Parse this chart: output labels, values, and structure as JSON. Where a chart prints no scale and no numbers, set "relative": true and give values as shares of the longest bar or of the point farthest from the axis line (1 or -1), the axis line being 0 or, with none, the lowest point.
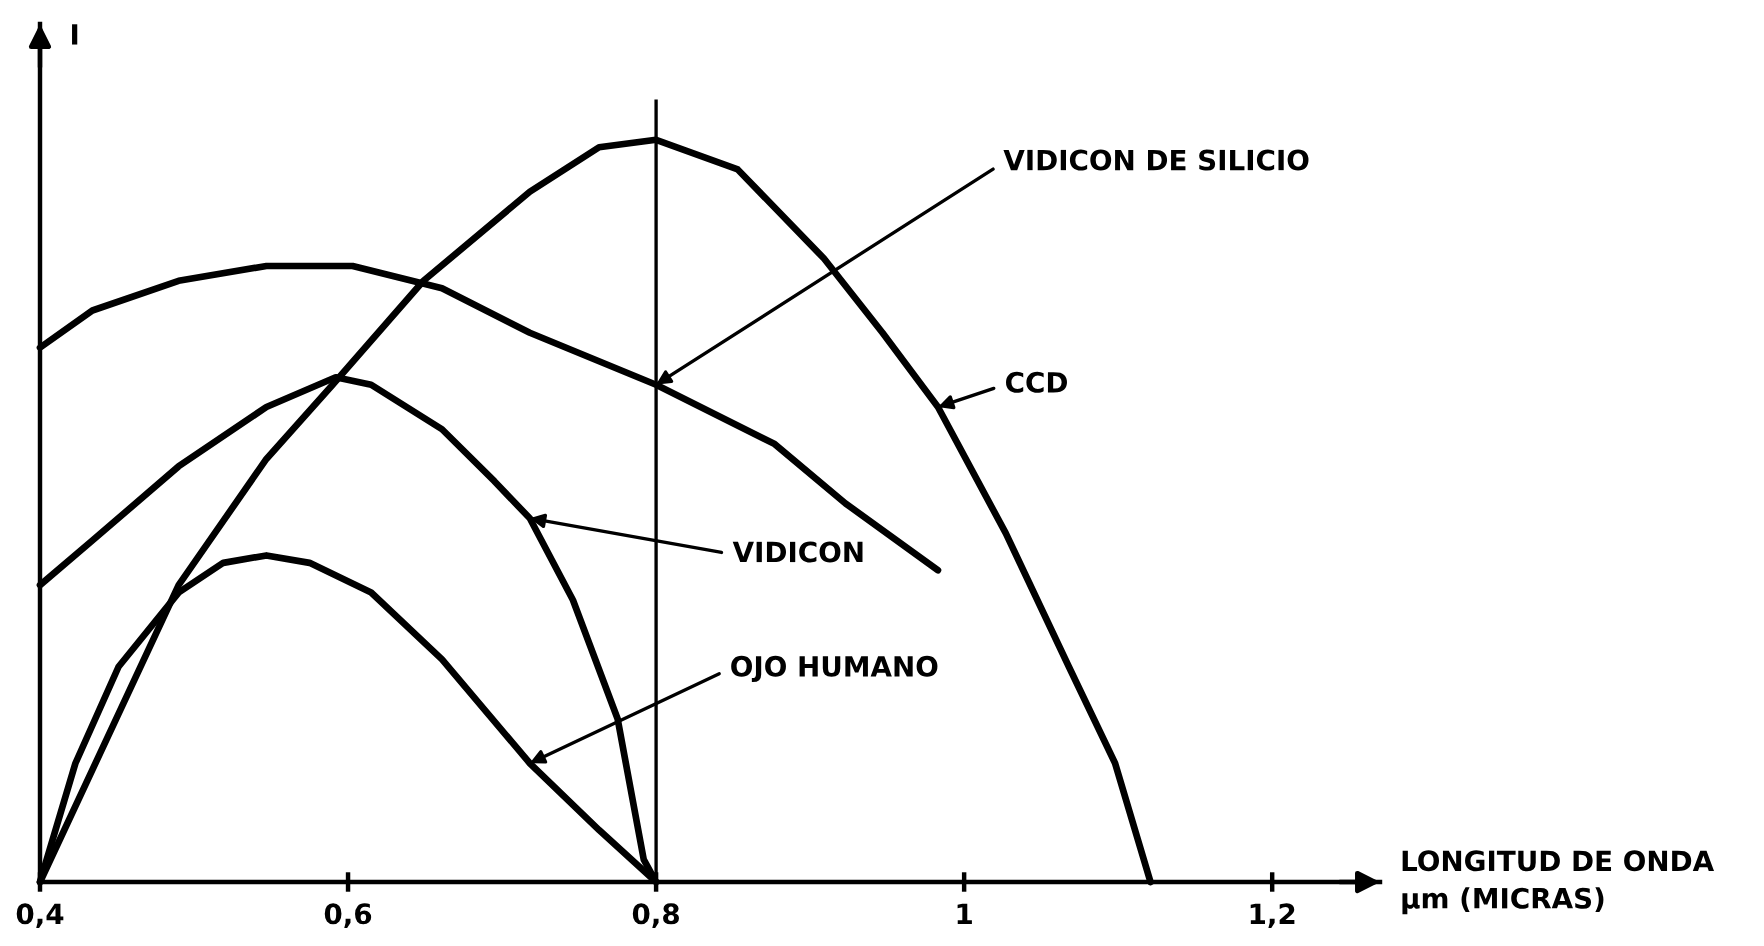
{
  "chart_data": {
    "type": "line",
    "relative": true,
    "xlabel": "LONGITUD DE ONDA\nμm (MICRAS)",
    "ylabel": "I",
    "xlim": [
      0.4,
      1.27
    ],
    "xticks": [
      {
        "value": 0.4,
        "label": "0,4"
      },
      {
        "value": 0.6,
        "label": "0,6"
      },
      {
        "value": 0.8,
        "label": "0,8"
      },
      1,
      {
        "value": 1.2,
        "label": "1,2"
      }
    ],
    "tick_labels": "x",
    "marker": "none",
    "line_style": "solid",
    "ref_lines": [
      {
        "axis": "x",
        "value": 0.8,
        "color": "#000000"
      }
    ],
    "series": [
      {
        "name": "CCD",
        "color": "#000000",
        "x": [
          0.4,
          0.49,
          0.547,
          0.59,
          0.649,
          0.718,
          0.763,
          0.8,
          0.853,
          0.909,
          0.947,
          0.983,
          1.027,
          1.068,
          1.098,
          1.121
        ],
        "values": [
          0,
          0.4,
          0.57,
          0.67,
          0.81,
          0.93,
          0.99,
          1.0,
          0.96,
          0.84,
          0.74,
          0.64,
          0.47,
          0.29,
          0.16,
          0
        ]
      },
      {
        "name": "VIDICON DE SILICIO",
        "color": "#000000",
        "x": [
          0.4,
          0.434,
          0.49,
          0.547,
          0.603,
          0.661,
          0.718,
          0.8,
          0.877,
          0.923,
          0.983
        ],
        "values": [
          0.72,
          0.77,
          0.81,
          0.83,
          0.83,
          0.8,
          0.74,
          0.67,
          0.59,
          0.51,
          0.42
        ]
      },
      {
        "name": "VIDICON",
        "color": "#000000",
        "x": [
          0.4,
          0.434,
          0.49,
          0.547,
          0.592,
          0.615,
          0.661,
          0.695,
          0.718,
          0.746,
          0.775,
          0.792,
          0.8
        ],
        "values": [
          0.4,
          0.46,
          0.56,
          0.64,
          0.68,
          0.67,
          0.61,
          0.54,
          0.49,
          0.38,
          0.22,
          0.03,
          0
        ]
      },
      {
        "name": "OJO HUMANO",
        "color": "#000000",
        "x": [
          0.4,
          0.423,
          0.451,
          0.49,
          0.519,
          0.547,
          0.575,
          0.615,
          0.661,
          0.718,
          0.763,
          0.8
        ],
        "values": [
          0,
          0.16,
          0.29,
          0.39,
          0.43,
          0.44,
          0.43,
          0.39,
          0.3,
          0.16,
          0.07,
          0
        ]
      }
    ]
  }
}
